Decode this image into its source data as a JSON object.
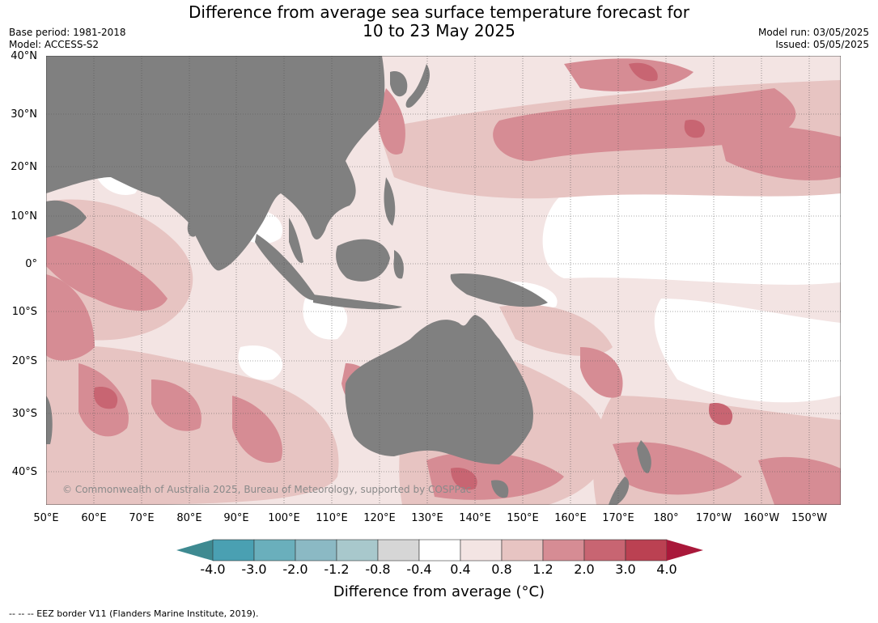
{
  "title": {
    "line1": "Difference from average sea surface temperature forecast for",
    "line2": "10 to 23 May 2025"
  },
  "meta_left": {
    "base_period": "Base period: 1981-2018",
    "model": "Model: ACCESS-S2"
  },
  "meta_right": {
    "model_run": "Model run: 03/05/2025",
    "issued": "Issued: 05/05/2025"
  },
  "map": {
    "lat_labels": [
      "40°N",
      "30°N",
      "20°N",
      "10°N",
      "0°",
      "10°S",
      "20°S",
      "30°S",
      "40°S"
    ],
    "lon_labels": [
      "50°E",
      "60°E",
      "70°E",
      "80°E",
      "90°E",
      "100°E",
      "110°E",
      "120°E",
      "130°E",
      "140°E",
      "150°E",
      "160°E",
      "170°E",
      "180°",
      "170°W",
      "160°W",
      "150°W"
    ],
    "copyright": "© Commonwealth of Australia 2025, Bureau of Meteorology, supported by COSPPac",
    "land_color": "#808080"
  },
  "colorbar": {
    "label": "Difference from average (°C)",
    "ticks": [
      "-4.0",
      "-3.0",
      "-2.0",
      "-1.2",
      "-0.8",
      "-0.4",
      "0.4",
      "0.8",
      "1.2",
      "2.0",
      "3.0",
      "4.0"
    ],
    "colors": [
      "#3e8a91",
      "#4aa0b2",
      "#6aafbc",
      "#8bb9c4",
      "#a8c8cc",
      "#d6d6d6",
      "#ffffff",
      "#f3e4e3",
      "#e7c4c2",
      "#d68c94",
      "#c86572",
      "#bb4152",
      "#a9183a"
    ]
  },
  "footnote": "--  --  -- EEZ border V11 (Flanders Marine Institute, 2019)."
}
